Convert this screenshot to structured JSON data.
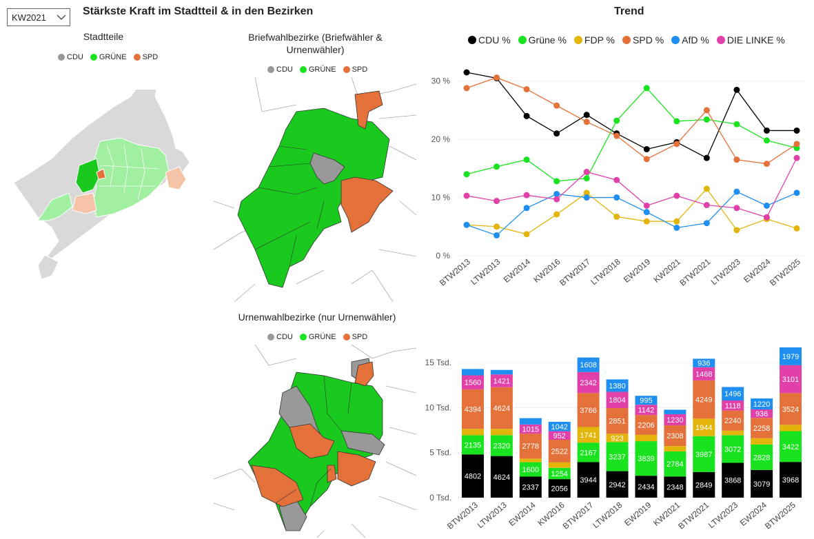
{
  "slicer": {
    "value": "KW2021"
  },
  "header": {
    "title": "Stärkste Kraft im Stadtteil & in den Bezirken",
    "trend_title": "Trend"
  },
  "maps": {
    "stadtteile": {
      "title": "Stadtteile",
      "legend": [
        "CDU",
        "GRÜNE",
        "SPD"
      ]
    },
    "briefwahl": {
      "title_line1": "Briefwahlbezirke (Briefwähler &",
      "title_line2": "Urnenwähler)",
      "legend": [
        "CDU",
        "GRÜNE",
        "SPD"
      ]
    },
    "urnenwahl": {
      "title": "Urnenwahlbezirke (nur Urnenwähler)",
      "legend": [
        "CDU",
        "GRÜNE",
        "SPD"
      ]
    }
  },
  "colors": {
    "cdu": "#000000",
    "cdu_map": "#999999",
    "gruene": "#19e31e",
    "fdp": "#e3b50a",
    "spd": "#e5713a",
    "afd": "#1e8ef0",
    "linke": "#e040a8"
  },
  "chart_data": [
    {
      "type": "line",
      "x": [
        "BTW2013",
        "LTW2013",
        "EW2014",
        "KW2016",
        "BTW2017",
        "LTW2018",
        "EW2019",
        "KW2021",
        "BTW2021",
        "LTW2023",
        "EW2024",
        "BTW2025"
      ],
      "ylim": [
        0,
        30
      ],
      "yticks": [
        "0 %",
        "10 %",
        "20 %",
        "30 %"
      ],
      "grid": true,
      "legend_position": "top",
      "series": [
        {
          "name": "CDU %",
          "color": "#000000",
          "values": [
            31.5,
            30.5,
            24,
            21,
            24.2,
            21,
            18.3,
            19.5,
            16.8,
            28.5,
            21.5,
            21.5
          ]
        },
        {
          "name": "Grüne %",
          "color": "#19e31e",
          "values": [
            14,
            15.3,
            16.5,
            12.8,
            13.3,
            23.2,
            28.8,
            23.1,
            23.4,
            22.6,
            19.8,
            18.5
          ]
        },
        {
          "name": "FDP %",
          "color": "#e3b50a",
          "values": [
            5.3,
            5,
            3.7,
            7.1,
            10.8,
            6.7,
            5.9,
            5.9,
            11.5,
            4.4,
            6.3,
            4.7
          ]
        },
        {
          "name": "SPD %",
          "color": "#e5713a",
          "values": [
            28.8,
            30.6,
            28.6,
            25.8,
            23,
            20.6,
            16.6,
            19.2,
            25,
            16.5,
            15.8,
            19.2
          ]
        },
        {
          "name": "AfD %",
          "color": "#1e8ef0",
          "values": [
            5.3,
            3.5,
            8.2,
            10.6,
            10,
            10,
            7.5,
            4.8,
            5.6,
            11,
            8.6,
            10.8
          ]
        },
        {
          "name": "DIE LINKE %",
          "color": "#e040a8",
          "values": [
            10.3,
            9.4,
            10.4,
            9.7,
            14.4,
            13,
            8.6,
            10.3,
            8.7,
            8.2,
            6.6,
            16.8
          ]
        }
      ]
    },
    {
      "type": "bar",
      "stacked": true,
      "categories": [
        "BTW2013",
        "LTW2013",
        "EW2014",
        "KW2016",
        "BTW2017",
        "LTW2018",
        "EW2019",
        "KW2021",
        "BTW2021",
        "LTW2023",
        "EW2024",
        "BTW2025"
      ],
      "ylim": [
        0,
        17000
      ],
      "yticks": [
        "0 Tsd.",
        "5 Tsd.",
        "10 Tsd.",
        "15 Tsd."
      ],
      "grid": true,
      "series": [
        {
          "name": "CDU",
          "color": "#000000",
          "values": [
            4802,
            4624,
            2337,
            2056,
            3944,
            2942,
            2434,
            2348,
            2849,
            3868,
            3079,
            3968
          ],
          "labels": [
            "4802",
            "4624",
            "2337",
            "2056",
            "3944",
            "2942",
            "2434",
            "2348",
            "2849",
            "3868",
            "3079",
            "3968"
          ]
        },
        {
          "name": "Grüne",
          "color": "#19e31e",
          "values": [
            2135,
            2320,
            1600,
            1254,
            2167,
            3237,
            3839,
            2784,
            3987,
            3072,
            2828,
            3422
          ],
          "labels": [
            "2135",
            "2320",
            "1600",
            "1254",
            "2167",
            "3237",
            "3839",
            "2784",
            "3987",
            "3072",
            "2828",
            "3422"
          ]
        },
        {
          "name": "FDP",
          "color": "#e3b50a",
          "values": [
            700,
            700,
            400,
            600,
            1741,
            923,
            700,
            600,
            1944,
            500,
            700,
            700
          ],
          "labels": [
            "",
            "",
            "",
            "",
            "1741",
            "923",
            "",
            "",
            "1944",
            "",
            "",
            ""
          ]
        },
        {
          "name": "SPD",
          "color": "#e5713a",
          "values": [
            4394,
            4624,
            2778,
            2522,
            3766,
            2851,
            2206,
            2308,
            4249,
            2240,
            2258,
            3524
          ],
          "labels": [
            "4394",
            "4624",
            "2778",
            "2522",
            "3766",
            "2851",
            "2206",
            "2308",
            "4249",
            "2240",
            "2258",
            "3524"
          ]
        },
        {
          "name": "DIE LINKE",
          "color": "#e040a8",
          "values": [
            1560,
            1421,
            1015,
            952,
            2342,
            1804,
            1142,
            1230,
            1468,
            1118,
            936,
            3101
          ],
          "labels": [
            "1560",
            "1421",
            "1015",
            "952",
            "2342",
            "1804",
            "1142",
            "1230",
            "1468",
            "1118",
            "936",
            "3101"
          ]
        },
        {
          "name": "AfD",
          "color": "#1e8ef0",
          "values": [
            700,
            500,
            700,
            1042,
            1608,
            1380,
            995,
            500,
            936,
            1496,
            1220,
            1979
          ],
          "labels": [
            "",
            "",
            "",
            "1042",
            "1608",
            "1380",
            "995",
            "",
            "936",
            "1496",
            "1220",
            "1979"
          ]
        }
      ]
    }
  ]
}
